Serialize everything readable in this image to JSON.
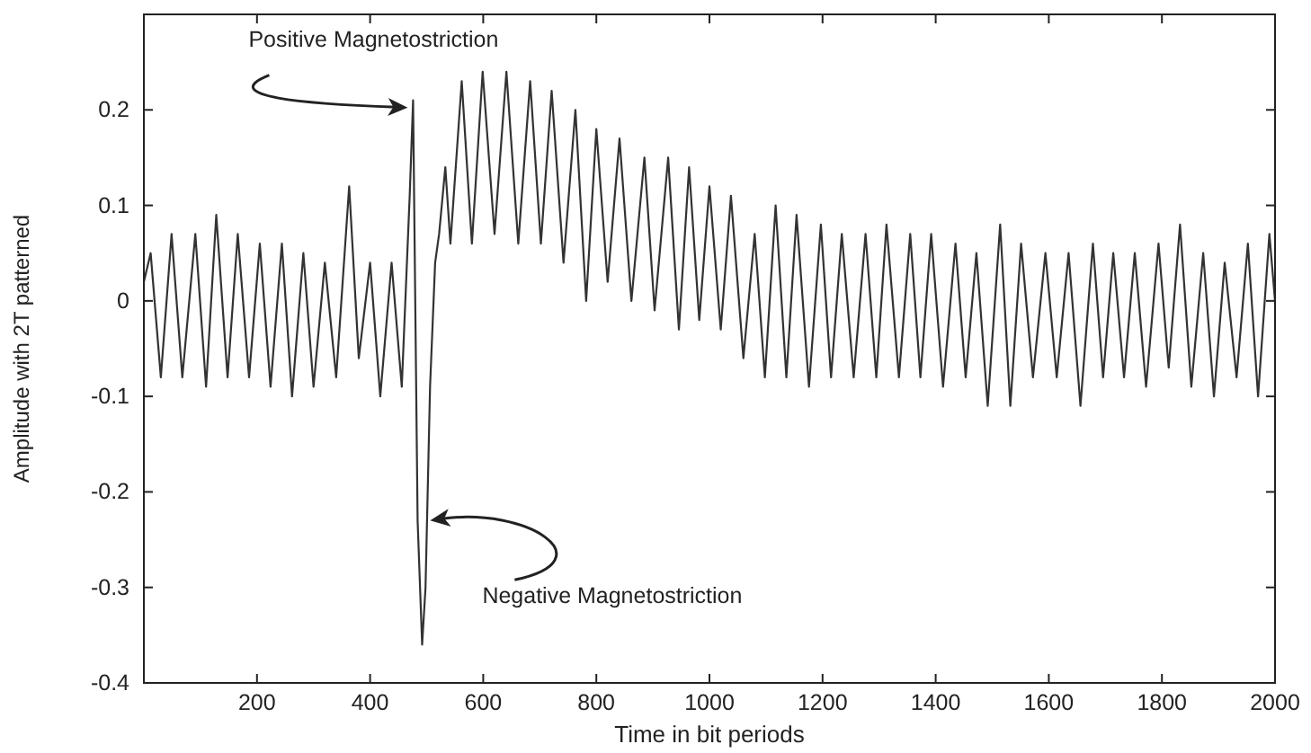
{
  "chart_data": {
    "type": "line",
    "xlabel": "Time in bit periods",
    "ylabel": "Amplitude with 2T patterned",
    "xlim": [
      0,
      2000
    ],
    "xticks": [
      200,
      400,
      600,
      800,
      1000,
      1200,
      1400,
      1600,
      1800,
      2000
    ],
    "ylim": [
      -0.4,
      0.3
    ],
    "yticks": [
      -0.4,
      -0.3,
      -0.2,
      -0.1,
      0,
      0.1,
      0.2,
      {
        "value": 0.3,
        "label": null
      }
    ],
    "grid": false,
    "marker": "none",
    "line_style": "solid",
    "series": [
      {
        "color": "#333333",
        "x": [
          0,
          12,
          30,
          49,
          68,
          91,
          110,
          128,
          148,
          166,
          186,
          205,
          224,
          244,
          262,
          282,
          300,
          320,
          340,
          363,
          380,
          400,
          418,
          438,
          456,
          470,
          476,
          484,
          492,
          498,
          506,
          515,
          522,
          533,
          542,
          562,
          580,
          599,
          620,
          641,
          662,
          683,
          702,
          721,
          742,
          763,
          782,
          800,
          820,
          841,
          862,
          885,
          903,
          927,
          946,
          964,
          982,
          1000,
          1020,
          1038,
          1060,
          1080,
          1098,
          1117,
          1136,
          1154,
          1176,
          1197,
          1215,
          1234,
          1255,
          1276,
          1295,
          1313,
          1335,
          1355,
          1373,
          1392,
          1413,
          1435,
          1453,
          1472,
          1492,
          1514,
          1532,
          1551,
          1572,
          1594,
          1614,
          1635,
          1656,
          1678,
          1696,
          1714,
          1733,
          1752,
          1772,
          1794,
          1812,
          1832,
          1852,
          1873,
          1892,
          1911,
          1932,
          1952,
          1970,
          1990,
          2000
        ],
        "values": [
          0.02,
          0.05,
          -0.08,
          0.07,
          -0.08,
          0.07,
          -0.09,
          0.09,
          -0.08,
          0.07,
          -0.08,
          0.06,
          -0.09,
          0.06,
          -0.1,
          0.05,
          -0.09,
          0.04,
          -0.08,
          0.12,
          -0.06,
          0.04,
          -0.1,
          0.04,
          -0.09,
          0.11,
          0.21,
          -0.23,
          -0.36,
          -0.3,
          -0.09,
          0.04,
          0.07,
          0.14,
          0.06,
          0.23,
          0.06,
          0.24,
          0.07,
          0.24,
          0.06,
          0.23,
          0.06,
          0.22,
          0.04,
          0.2,
          0.0,
          0.18,
          0.02,
          0.17,
          0.0,
          0.15,
          -0.01,
          0.15,
          -0.03,
          0.14,
          -0.02,
          0.12,
          -0.03,
          0.11,
          -0.06,
          0.07,
          -0.08,
          0.1,
          -0.08,
          0.09,
          -0.09,
          0.08,
          -0.08,
          0.07,
          -0.08,
          0.07,
          -0.08,
          0.08,
          -0.08,
          0.07,
          -0.08,
          0.07,
          -0.09,
          0.06,
          -0.08,
          0.05,
          -0.11,
          0.08,
          -0.11,
          0.06,
          -0.08,
          0.05,
          -0.08,
          0.05,
          -0.11,
          0.06,
          -0.08,
          0.05,
          -0.08,
          0.05,
          -0.09,
          0.06,
          -0.07,
          0.08,
          -0.09,
          0.05,
          -0.1,
          0.04,
          -0.08,
          0.06,
          -0.1,
          0.07,
          0.0
        ]
      }
    ],
    "annotations": [
      {
        "text": "Positive Magnetostriction",
        "x": 476,
        "y": 0.21
      },
      {
        "text": "Negative Magnetostriction",
        "x": 503,
        "y": -0.23
      }
    ]
  }
}
